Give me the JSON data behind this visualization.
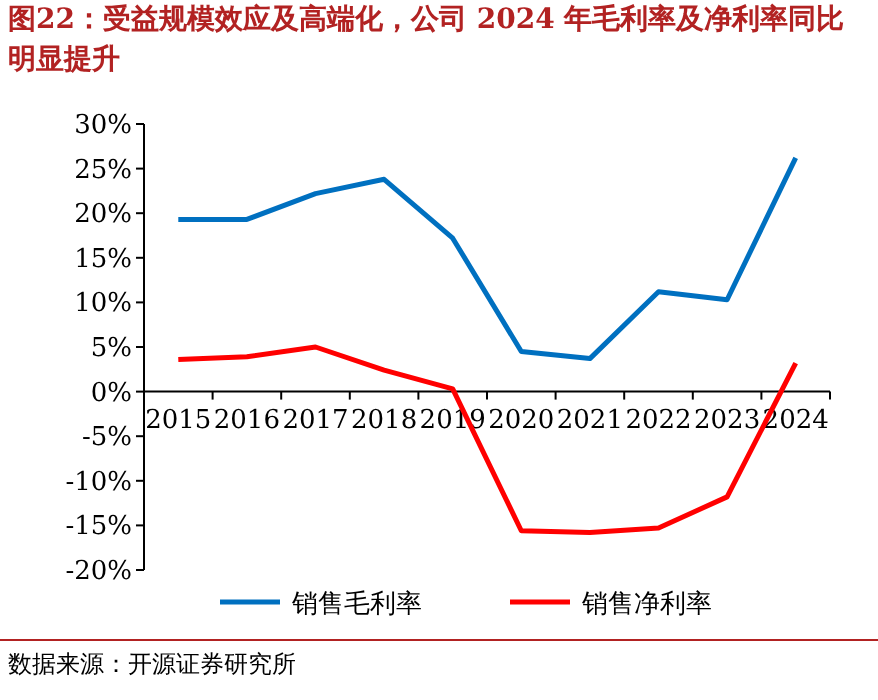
{
  "chart_data": {
    "type": "line",
    "title": "图22：受益规模效应及高端化，公司 2024 年毛利率及净利率同比明显提升",
    "annotations": [
      "数据来源：开源证券研究所"
    ],
    "categories": [
      "2015",
      "2016",
      "2017",
      "2018",
      "2019",
      "2020",
      "2021",
      "2022",
      "2023",
      "2024"
    ],
    "series": [
      {
        "name": "销售毛利率",
        "color": "#0070c0",
        "values": [
          19.3,
          19.3,
          22.2,
          23.8,
          17.2,
          4.5,
          3.7,
          11.2,
          10.3,
          26.2
        ]
      },
      {
        "name": "销售净利率",
        "color": "#ff0000",
        "values": [
          3.6,
          3.9,
          5.0,
          2.4,
          0.3,
          -15.6,
          -15.8,
          -15.3,
          -11.8,
          3.2
        ]
      }
    ],
    "ylim": [
      -20,
      30
    ],
    "yticks": [
      {
        "value": -20,
        "label": "-20%"
      },
      {
        "value": -15,
        "label": "-15%"
      },
      {
        "value": -10,
        "label": "-10%"
      },
      {
        "value": -5,
        "label": "-5%"
      },
      {
        "value": 0,
        "label": "0%"
      },
      {
        "value": 5,
        "label": "5%"
      },
      {
        "value": 10,
        "label": "10%"
      },
      {
        "value": 15,
        "label": "15%"
      },
      {
        "value": 20,
        "label": "20%"
      },
      {
        "value": 25,
        "label": "25%"
      },
      {
        "value": 30,
        "label": "30%"
      }
    ],
    "grid": false,
    "legend": "bottom",
    "marker": "none",
    "line_style": "solid"
  }
}
